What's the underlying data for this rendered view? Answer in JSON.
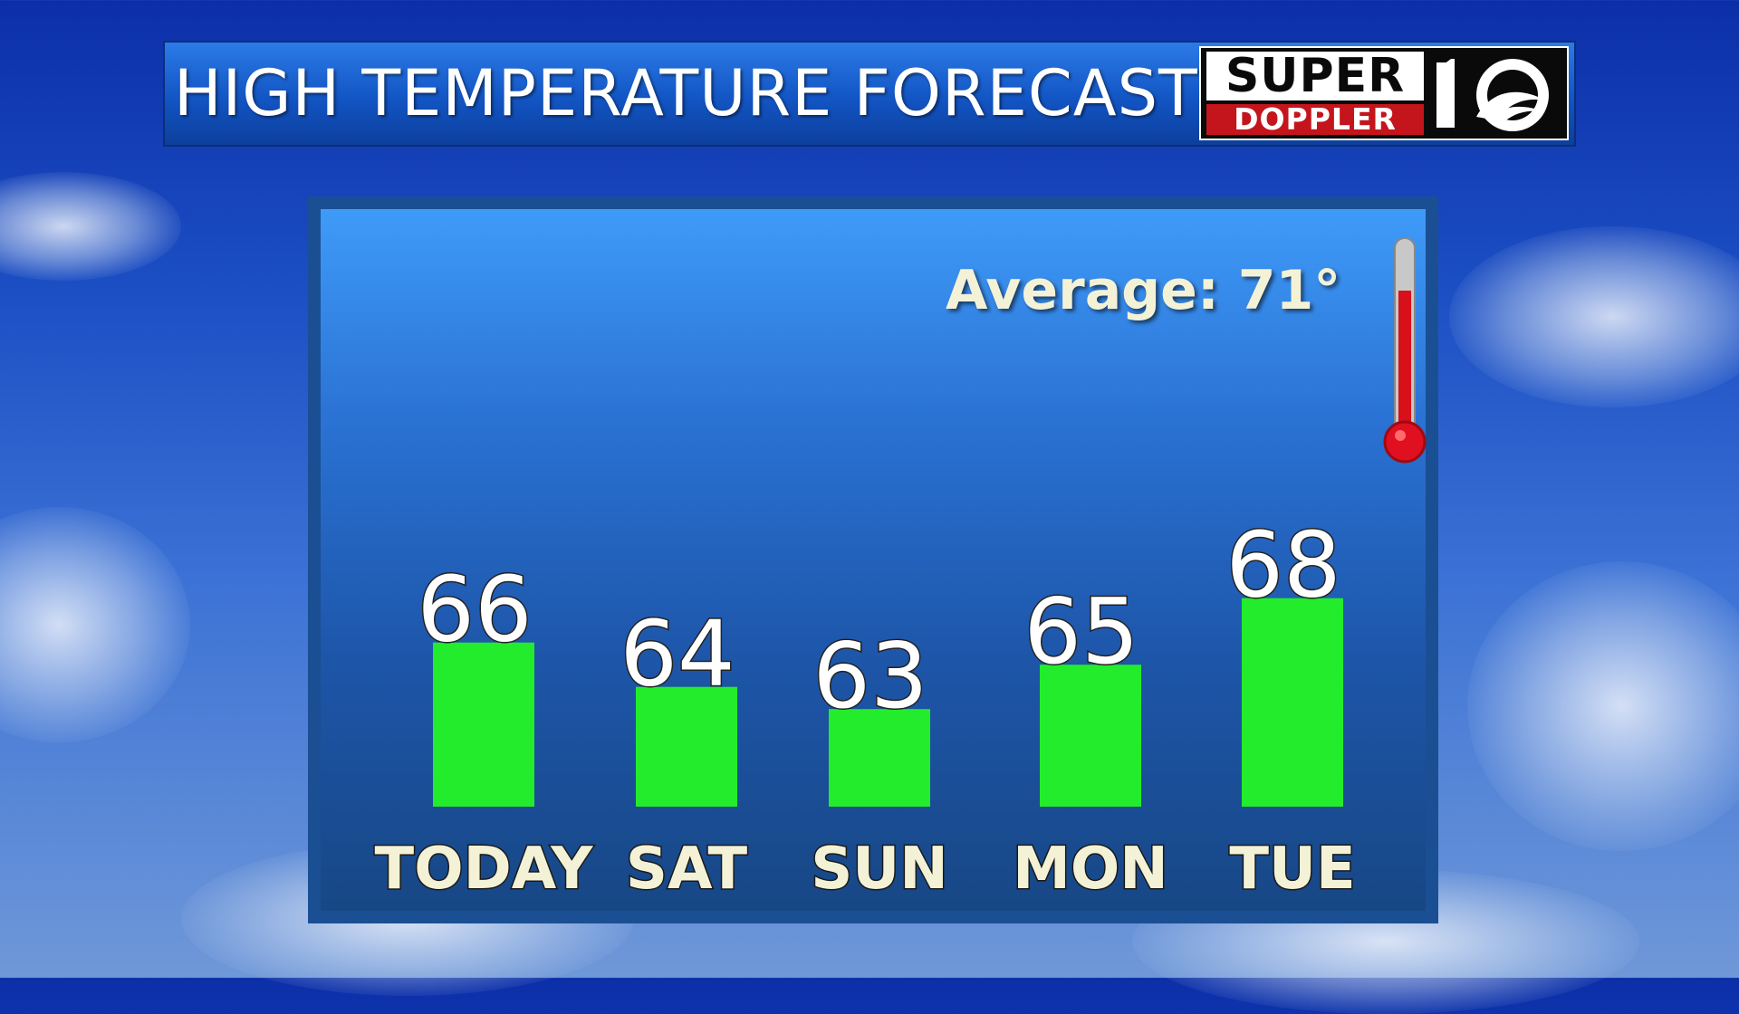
{
  "header": {
    "title": "HIGH TEMPERATURE FORECAST",
    "logo": {
      "line1": "SUPER",
      "line2": "DOPPLER",
      "mark": "10-wave-logo"
    }
  },
  "colors": {
    "bar": "#23ec2c",
    "panel": "#2a72d4",
    "label": "#f4f2d6",
    "thermometer": "#e01020"
  },
  "chart_data": {
    "type": "bar",
    "title": "HIGH TEMPERATURE FORECAST",
    "categories": [
      "TODAY",
      "SAT",
      "SUN",
      "MON",
      "TUE"
    ],
    "values": [
      66,
      64,
      63,
      65,
      68
    ],
    "annotation": "Average: 71°",
    "data_labels": true,
    "grid": false,
    "legend": "none"
  }
}
